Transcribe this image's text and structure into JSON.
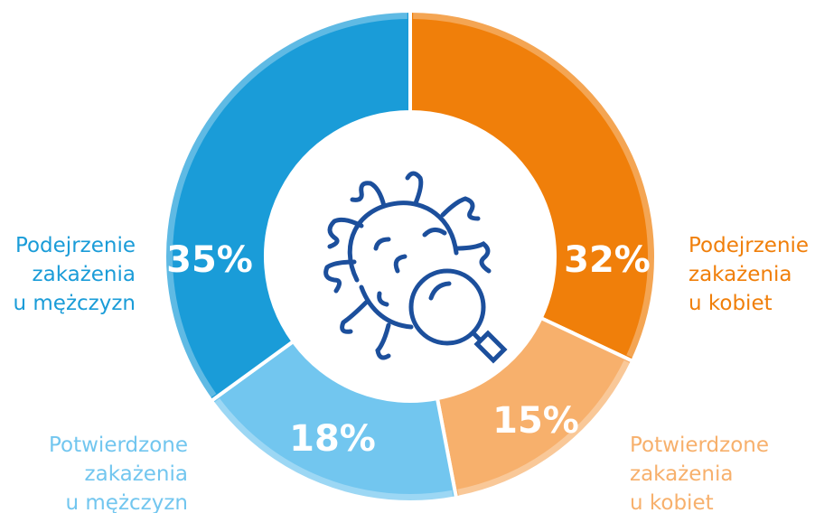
{
  "chart_data": {
    "type": "donut",
    "categories": [
      "Podejrzenie\nzakażenia\nu kobiet",
      "Potwierdzone\nzakażenia\nu kobiet",
      "Potwierdzone\nzakażenia\nu mężczyzn",
      "Podejrzenie\nzakażenia\nu mężczyzn"
    ],
    "values": [
      32,
      15,
      18,
      35
    ],
    "value_labels": [
      "32%",
      "15%",
      "18%",
      "35%"
    ],
    "colors": [
      "#f07f0a",
      "#f7b06c",
      "#72c6ef",
      "#1a9cd8"
    ]
  }
}
